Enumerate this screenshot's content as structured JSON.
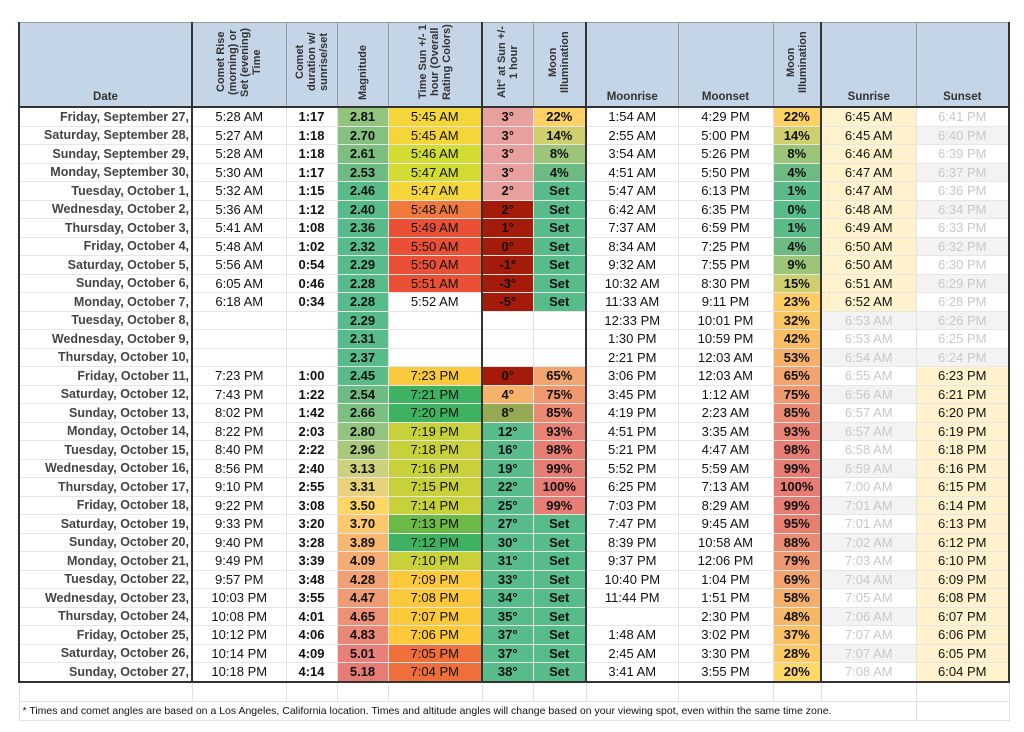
{
  "headers": {
    "date": "Date",
    "comet_rise": "Comet Rise (morning) or Set (evening) Time",
    "duration": "Comet duration w/ sunrise/set",
    "magnitude": "Magnitude",
    "time_sun": "Time Sun +/- 1 hour (Overall Rating Colors)",
    "alt": "Alt° at Sun +/- 1 hour",
    "moon_illum": "Moon Illumination",
    "moonrise": "Moonrise",
    "moonset": "Moonset",
    "moon_illum2": "Moon Illumination",
    "sunrise": "Sunrise",
    "sunset": "Sunset"
  },
  "rows": [
    {
      "date": "Friday, September 27,",
      "rise": "5:28 AM",
      "dur": "1:17",
      "mag": "2.81",
      "magc": "#93c47d",
      "sun": "5:45 AM",
      "sunc": "#f4d63a",
      "alt": "3°",
      "altc": "#e8a09e",
      "ill": "22%",
      "illc": "#fdd166",
      "mr": "1:54 AM",
      "ms": "4:29 PM",
      "ill2": "22%",
      "ill2c": "#fdd166",
      "sr": "6:45 AM",
      "srh": true,
      "ss": "6:41 PM",
      "ssh": false
    },
    {
      "date": "Saturday, September 28,",
      "rise": "5:27 AM",
      "dur": "1:18",
      "mag": "2.70",
      "magc": "#85c17e",
      "sun": "5:45 AM",
      "sunc": "#f4d63a",
      "alt": "3°",
      "altc": "#e8a09e",
      "ill": "14%",
      "illc": "#cfcf6e",
      "mr": "2:55 AM",
      "ms": "5:00 PM",
      "ill2": "14%",
      "ill2c": "#cfcf6e",
      "sr": "6:45 AM",
      "srh": true,
      "ss": "6:40 PM",
      "ssh": false
    },
    {
      "date": "Sunday, September 29,",
      "rise": "5:28 AM",
      "dur": "1:18",
      "mag": "2.61",
      "magc": "#7dbf80",
      "sun": "5:46 AM",
      "sunc": "#d3dc33",
      "alt": "3°",
      "altc": "#e8a09e",
      "ill": "8%",
      "illc": "#9cc57a",
      "mr": "3:54 AM",
      "ms": "5:26 PM",
      "ill2": "8%",
      "ill2c": "#9cc57a",
      "sr": "6:46 AM",
      "srh": true,
      "ss": "6:39 PM",
      "ssh": false
    },
    {
      "date": "Monday, September 30,",
      "rise": "5:30 AM",
      "dur": "1:17",
      "mag": "2.53",
      "magc": "#6dbb82",
      "sun": "5:47 AM",
      "sunc": "#d3dc33",
      "alt": "3°",
      "altc": "#e8a09e",
      "ill": "4%",
      "illc": "#6dbb82",
      "mr": "4:51 AM",
      "ms": "5:50 PM",
      "ill2": "4%",
      "ill2c": "#6dbb82",
      "sr": "6:47 AM",
      "srh": true,
      "ss": "6:37 PM",
      "ssh": false
    },
    {
      "date": "Tuesday, October 1,",
      "rise": "5:32 AM",
      "dur": "1:15",
      "mag": "2.46",
      "magc": "#5bbb88",
      "sun": "5:47 AM",
      "sunc": "#f4d63a",
      "alt": "2°",
      "altc": "#e8a09e",
      "ill": "Set",
      "illc": "#57bb8a",
      "mr": "5:47 AM",
      "ms": "6:13 PM",
      "ill2": "1%",
      "ill2c": "#5bbb88",
      "sr": "6:47 AM",
      "srh": true,
      "ss": "6:36 PM",
      "ssh": false
    },
    {
      "date": "Wednesday, October 2,",
      "rise": "5:36 AM",
      "dur": "1:12",
      "mag": "2.40",
      "magc": "#57bb8a",
      "sun": "5:48 AM",
      "sunc": "#f07a3c",
      "alt": "2°",
      "altc": "#a51b0a",
      "ill": "Set",
      "illc": "#57bb8a",
      "mr": "6:42 AM",
      "ms": "6:35 PM",
      "ill2": "0%",
      "ill2c": "#57bb8a",
      "sr": "6:48 AM",
      "srh": true,
      "ss": "6:34 PM",
      "ssh": false
    },
    {
      "date": "Thursday, October 3,",
      "rise": "5:41 AM",
      "dur": "1:08",
      "mag": "2.36",
      "magc": "#57bb8a",
      "sun": "5:49 AM",
      "sunc": "#ea5035",
      "alt": "1°",
      "altc": "#a51b0a",
      "ill": "Set",
      "illc": "#57bb8a",
      "mr": "7:37 AM",
      "ms": "6:59 PM",
      "ill2": "1%",
      "ill2c": "#5bbb88",
      "sr": "6:49 AM",
      "srh": true,
      "ss": "6:33 PM",
      "ssh": false
    },
    {
      "date": "Friday, October 4,",
      "rise": "5:48 AM",
      "dur": "1:02",
      "mag": "2.32",
      "magc": "#57bb8a",
      "sun": "5:50 AM",
      "sunc": "#ea5035",
      "alt": "0°",
      "altc": "#a51b0a",
      "ill": "Set",
      "illc": "#57bb8a",
      "mr": "8:34 AM",
      "ms": "7:25 PM",
      "ill2": "4%",
      "ill2c": "#6dbb82",
      "sr": "6:50 AM",
      "srh": true,
      "ss": "6:32 PM",
      "ssh": false
    },
    {
      "date": "Saturday, October 5,",
      "rise": "5:56 AM",
      "dur": "0:54",
      "mag": "2.29",
      "magc": "#57bb8a",
      "sun": "5:50 AM",
      "sunc": "#ea5035",
      "alt": "-1°",
      "altc": "#a51b0a",
      "ill": "Set",
      "illc": "#57bb8a",
      "mr": "9:32 AM",
      "ms": "7:55 PM",
      "ill2": "9%",
      "ill2c": "#9cc57a",
      "sr": "6:50 AM",
      "srh": true,
      "ss": "6:30 PM",
      "ssh": false
    },
    {
      "date": "Sunday, October 6,",
      "rise": "6:05 AM",
      "dur": "0:46",
      "mag": "2.28",
      "magc": "#57bb8a",
      "sun": "5:51 AM",
      "sunc": "#ea5035",
      "alt": "-3°",
      "altc": "#a51b0a",
      "ill": "Set",
      "illc": "#57bb8a",
      "mr": "10:32 AM",
      "ms": "8:30 PM",
      "ill2": "15%",
      "ill2c": "#cfcf6e",
      "sr": "6:51 AM",
      "srh": true,
      "ss": "6:29 PM",
      "ssh": false
    },
    {
      "date": "Monday, October 7,",
      "rise": "6:18 AM",
      "dur": "0:34",
      "mag": "2.28",
      "magc": "#57bb8a",
      "sun": "5:52 AM",
      "sunc": "",
      "alt": "-5°",
      "altc": "#a51b0a",
      "ill": "Set",
      "illc": "#57bb8a",
      "mr": "11:33 AM",
      "ms": "9:11 PM",
      "ill2": "23%",
      "ill2c": "#fdcd64",
      "sr": "6:52 AM",
      "srh": true,
      "ss": "6:28 PM",
      "ssh": false
    },
    {
      "date": "Tuesday, October 8,",
      "rise": "",
      "dur": "",
      "mag": "2.29",
      "magc": "#57bb8a",
      "sun": "",
      "sunc": "",
      "alt": "",
      "altc": "",
      "ill": "",
      "illc": "",
      "mr": "12:33 PM",
      "ms": "10:01 PM",
      "ill2": "32%",
      "ill2c": "#fbc562",
      "sr": "6:53 AM",
      "srh": false,
      "ss": "6:26 PM",
      "ssh": false
    },
    {
      "date": "Wednesday, October 9,",
      "rise": "",
      "dur": "",
      "mag": "2.31",
      "magc": "#57bb8a",
      "sun": "",
      "sunc": "",
      "alt": "",
      "altc": "",
      "ill": "",
      "illc": "",
      "mr": "1:30 PM",
      "ms": "10:59 PM",
      "ill2": "42%",
      "ill2c": "#f8bd65",
      "sr": "6:53 AM",
      "srh": false,
      "ss": "6:25 PM",
      "ssh": false
    },
    {
      "date": "Thursday, October 10,",
      "rise": "",
      "dur": "",
      "mag": "2.37",
      "magc": "#57bb8a",
      "sun": "",
      "sunc": "",
      "alt": "",
      "altc": "",
      "ill": "",
      "illc": "",
      "mr": "2:21 PM",
      "ms": "12:03 AM",
      "ill2": "53%",
      "ill2c": "#f5b068",
      "sr": "6:54 AM",
      "srh": false,
      "ss": "6:24 PM",
      "ssh": false
    },
    {
      "date": "Friday, October 11,",
      "rise": "7:23 PM",
      "dur": "1:00",
      "mag": "2.45",
      "magc": "#5bbb88",
      "sun": "7:23 PM",
      "sunc": "#fbc93d",
      "alt": "0°",
      "altc": "#a51b0a",
      "ill": "65%",
      "illc": "#f2a46e",
      "mr": "3:06 PM",
      "ms": "12:03 AM",
      "ill2": "65%",
      "ill2c": "#f2a46e",
      "sr": "6:55 AM",
      "srh": false,
      "ss": "6:23 PM",
      "ssh": true
    },
    {
      "date": "Saturday, October 12,",
      "rise": "7:43 PM",
      "dur": "1:22",
      "mag": "2.54",
      "magc": "#6dbb82",
      "sun": "7:21 PM",
      "sunc": "#3eb260",
      "alt": "4°",
      "altc": "#f6b26b",
      "ill": "75%",
      "illc": "#ef976f",
      "mr": "3:45 PM",
      "ms": "1:12 AM",
      "ill2": "75%",
      "ill2c": "#ef976f",
      "sr": "6:56 AM",
      "srh": false,
      "ss": "6:21 PM",
      "ssh": true
    },
    {
      "date": "Sunday, October 13,",
      "rise": "8:02 PM",
      "dur": "1:42",
      "mag": "2.66",
      "magc": "#7dbf80",
      "sun": "7:20 PM",
      "sunc": "#3eb260",
      "alt": "8°",
      "altc": "#96a955",
      "ill": "85%",
      "illc": "#ea8a72",
      "mr": "4:19 PM",
      "ms": "2:23 AM",
      "ill2": "85%",
      "ill2c": "#ea8a72",
      "sr": "6:57 AM",
      "srh": false,
      "ss": "6:20 PM",
      "ssh": true
    },
    {
      "date": "Monday, October 14,",
      "rise": "8:22 PM",
      "dur": "2:03",
      "mag": "2.80",
      "magc": "#93c47d",
      "sun": "7:19 PM",
      "sunc": "#c9d13a",
      "alt": "12°",
      "altc": "#57bb8a",
      "ill": "93%",
      "illc": "#e88274",
      "mr": "4:51 PM",
      "ms": "3:35 AM",
      "ill2": "93%",
      "ill2c": "#e88274",
      "sr": "6:57 AM",
      "srh": false,
      "ss": "6:19 PM",
      "ssh": true
    },
    {
      "date": "Tuesday, October 15,",
      "rise": "8:40 PM",
      "dur": "2:22",
      "mag": "2.96",
      "magc": "#a8c97a",
      "sun": "7:18 PM",
      "sunc": "#c9d13a",
      "alt": "16°",
      "altc": "#57bb8a",
      "ill": "98%",
      "illc": "#e67e73",
      "mr": "5:21 PM",
      "ms": "4:47 AM",
      "ill2": "98%",
      "ill2c": "#e67e73",
      "sr": "6:58 AM",
      "srh": false,
      "ss": "6:18 PM",
      "ssh": true
    },
    {
      "date": "Wednesday, October 16,",
      "rise": "8:56 PM",
      "dur": "2:40",
      "mag": "3.13",
      "magc": "#cdd07c",
      "sun": "7:16 PM",
      "sunc": "#c9d13a",
      "alt": "19°",
      "altc": "#57bb8a",
      "ill": "99%",
      "illc": "#e67e73",
      "mr": "5:52 PM",
      "ms": "5:59 AM",
      "ill2": "99%",
      "ill2c": "#e67e73",
      "sr": "6:59 AM",
      "srh": false,
      "ss": "6:16 PM",
      "ssh": true
    },
    {
      "date": "Thursday, October 17,",
      "rise": "9:10 PM",
      "dur": "2:55",
      "mag": "3.31",
      "magc": "#e6d27b",
      "sun": "7:15 PM",
      "sunc": "#c9d13a",
      "alt": "22°",
      "altc": "#57bb8a",
      "ill": "100%",
      "illc": "#e67c73",
      "mr": "6:25 PM",
      "ms": "7:13 AM",
      "ill2": "100%",
      "ill2c": "#e67c73",
      "sr": "7:00 AM",
      "srh": false,
      "ss": "6:15 PM",
      "ssh": true
    },
    {
      "date": "Friday, October 18,",
      "rise": "9:22 PM",
      "dur": "3:08",
      "mag": "3.50",
      "magc": "#ffd666",
      "sun": "7:14 PM",
      "sunc": "#c9d13a",
      "alt": "25°",
      "altc": "#57bb8a",
      "ill": "99%",
      "illc": "#e67e73",
      "mr": "7:03 PM",
      "ms": "8:29 AM",
      "ill2": "99%",
      "ill2c": "#e67e73",
      "sr": "7:01 AM",
      "srh": false,
      "ss": "6:14 PM",
      "ssh": true
    },
    {
      "date": "Saturday, October 19,",
      "rise": "9:33 PM",
      "dur": "3:20",
      "mag": "3.70",
      "magc": "#fbc86e",
      "sun": "7:13 PM",
      "sunc": "#6cb945",
      "alt": "27°",
      "altc": "#57bb8a",
      "ill": "Set",
      "illc": "#57bb8a",
      "mr": "7:47 PM",
      "ms": "9:45 AM",
      "ill2": "95%",
      "ill2c": "#e7806f",
      "sr": "7:01 AM",
      "srh": false,
      "ss": "6:13 PM",
      "ssh": true
    },
    {
      "date": "Sunday, October 20,",
      "rise": "9:40 PM",
      "dur": "3:28",
      "mag": "3.89",
      "magc": "#f6b870",
      "sun": "7:12 PM",
      "sunc": "#3eb260",
      "alt": "30°",
      "altc": "#57bb8a",
      "ill": "Set",
      "illc": "#57bb8a",
      "mr": "8:39 PM",
      "ms": "10:58 AM",
      "ill2": "88%",
      "ill2c": "#e98a72",
      "sr": "7:02 AM",
      "srh": false,
      "ss": "6:12 PM",
      "ssh": true
    },
    {
      "date": "Monday, October 21,",
      "rise": "9:49 PM",
      "dur": "3:39",
      "mag": "4.09",
      "magc": "#f3ac72",
      "sun": "7:10 PM",
      "sunc": "#c9d13a",
      "alt": "31°",
      "altc": "#57bb8a",
      "ill": "Set",
      "illc": "#57bb8a",
      "mr": "9:37 PM",
      "ms": "12:06 PM",
      "ill2": "79%",
      "ill2c": "#ed9870",
      "sr": "7:03 AM",
      "srh": false,
      "ss": "6:10 PM",
      "ssh": true
    },
    {
      "date": "Tuesday, October 22,",
      "rise": "9:57 PM",
      "dur": "3:48",
      "mag": "4.28",
      "magc": "#f0a073",
      "sun": "7:09 PM",
      "sunc": "#fbc93a",
      "alt": "33°",
      "altc": "#57bb8a",
      "ill": "Set",
      "illc": "#57bb8a",
      "mr": "10:40 PM",
      "ms": "1:04 PM",
      "ill2": "69%",
      "ill2c": "#f1a46d",
      "sr": "7:04 AM",
      "srh": false,
      "ss": "6:09 PM",
      "ssh": true
    },
    {
      "date": "Wednesday, October 23,",
      "rise": "10:03 PM",
      "dur": "3:55",
      "mag": "4.47",
      "magc": "#ee9a74",
      "sun": "7:08 PM",
      "sunc": "#fbc93a",
      "alt": "34°",
      "altc": "#57bb8a",
      "ill": "Set",
      "illc": "#57bb8a",
      "mr": "11:44 PM",
      "ms": "1:51 PM",
      "ill2": "58%",
      "ill2c": "#f4ae69",
      "sr": "7:05 AM",
      "srh": false,
      "ss": "6:08 PM",
      "ssh": true
    },
    {
      "date": "Thursday, October 24,",
      "rise": "10:08 PM",
      "dur": "4:01",
      "mag": "4.65",
      "magc": "#ec9176",
      "sun": "7:07 PM",
      "sunc": "#fbc93a",
      "alt": "35°",
      "altc": "#57bb8a",
      "ill": "Set",
      "illc": "#57bb8a",
      "mr": "",
      "ms": "2:30 PM",
      "ill2": "48%",
      "ill2c": "#f6b766",
      "sr": "7:06 AM",
      "srh": false,
      "ss": "6:07 PM",
      "ssh": true
    },
    {
      "date": "Friday, October 25,",
      "rise": "10:12 PM",
      "dur": "4:06",
      "mag": "4.83",
      "magc": "#e98877",
      "sun": "7:06 PM",
      "sunc": "#fbc93a",
      "alt": "37°",
      "altc": "#57bb8a",
      "ill": "Set",
      "illc": "#57bb8a",
      "mr": "1:48 AM",
      "ms": "3:02 PM",
      "ill2": "37%",
      "ill2c": "#f9c163",
      "sr": "7:07 AM",
      "srh": false,
      "ss": "6:06 PM",
      "ssh": true
    },
    {
      "date": "Saturday, October 26,",
      "rise": "10:14 PM",
      "dur": "4:09",
      "mag": "5.01",
      "magc": "#e8807a",
      "sun": "7:05 PM",
      "sunc": "#ef6f3a",
      "alt": "37°",
      "altc": "#57bb8a",
      "ill": "Set",
      "illc": "#57bb8a",
      "mr": "2:45 AM",
      "ms": "3:30 PM",
      "ill2": "28%",
      "ill2c": "#fcc962",
      "sr": "7:07 AM",
      "srh": false,
      "ss": "6:05 PM",
      "ssh": true
    },
    {
      "date": "Sunday, October 27,",
      "rise": "10:18 PM",
      "dur": "4:14",
      "mag": "5.18",
      "magc": "#e67c73",
      "sun": "7:04 PM",
      "sunc": "#ef6f3a",
      "alt": "38°",
      "altc": "#57bb8a",
      "ill": "Set",
      "illc": "#57bb8a",
      "mr": "3:41 AM",
      "ms": "3:55 PM",
      "ill2": "20%",
      "ill2c": "#fdd866",
      "sr": "7:08 AM",
      "srh": false,
      "ss": "6:04 PM",
      "ssh": true
    }
  ],
  "footnote": "* Times and comet angles are based on a Los Angeles, California location.  Times and altitude angles will change based on your viewing spot, even within the same time zone.",
  "colors": {
    "header_bg": "#c5d5e8",
    "highlight_cream": "#fff2cc",
    "zebra": "#f3f3f3",
    "faded_text": "#c8c8c8"
  }
}
